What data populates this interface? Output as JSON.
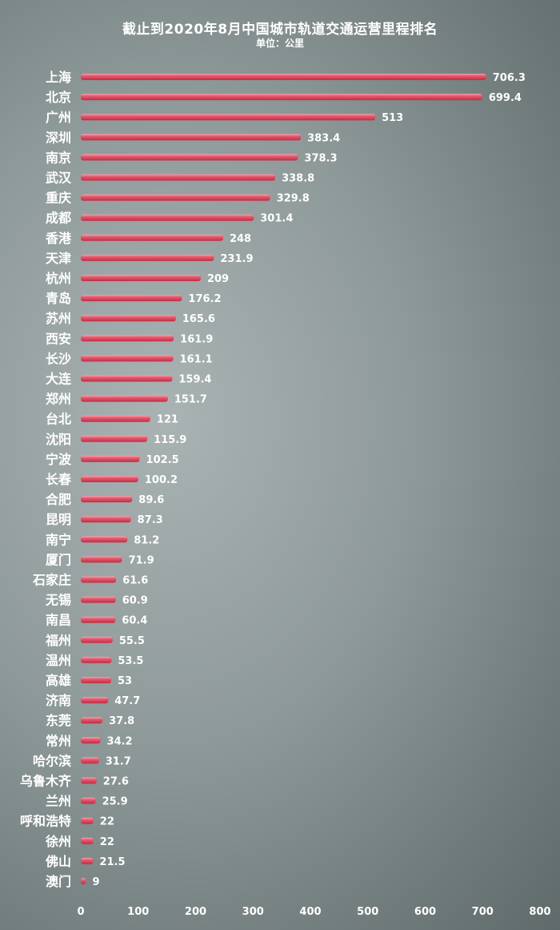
{
  "chart_data": {
    "type": "bar",
    "orientation": "horizontal",
    "title": "截止到2020年8月中国城市轨道交通运营里程排名",
    "subtitle": "单位：公里",
    "xlim": [
      0,
      800
    ],
    "xticks": [
      "0",
      "100",
      "200",
      "300",
      "400",
      "500",
      "600",
      "700",
      "800"
    ],
    "grid": false,
    "bar_color": "#e0475e",
    "categories": [
      "上海",
      "北京",
      "广州",
      "深圳",
      "南京",
      "武汉",
      "重庆",
      "成都",
      "香港",
      "天津",
      "杭州",
      "青岛",
      "苏州",
      "西安",
      "长沙",
      "大连",
      "郑州",
      "台北",
      "沈阳",
      "宁波",
      "长春",
      "合肥",
      "昆明",
      "南宁",
      "厦门",
      "石家庄",
      "无锡",
      "南昌",
      "福州",
      "温州",
      "高雄",
      "济南",
      "东莞",
      "常州",
      "哈尔滨",
      "乌鲁木齐",
      "兰州",
      "呼和浩特",
      "徐州",
      "佛山",
      "澳门"
    ],
    "values": [
      706.3,
      699.4,
      513,
      383.4,
      378.3,
      338.8,
      329.8,
      301.4,
      248,
      231.9,
      209,
      176.2,
      165.6,
      161.9,
      161.1,
      159.4,
      151.7,
      121,
      115.9,
      102.5,
      100.2,
      89.6,
      87.3,
      81.2,
      71.9,
      61.6,
      60.9,
      60.4,
      55.5,
      53.5,
      53,
      47.7,
      37.8,
      34.2,
      31.7,
      27.6,
      25.9,
      22,
      22,
      21.5,
      9
    ],
    "value_labels": [
      "706.3",
      "699.4",
      "513",
      "383.4",
      "378.3",
      "338.8",
      "329.8",
      "301.4",
      "248",
      "231.9",
      "209",
      "176.2",
      "165.6",
      "161.9",
      "161.1",
      "159.4",
      "151.7",
      "121",
      "115.9",
      "102.5",
      "100.2",
      "89.6",
      "87.3",
      "81.2",
      "71.9",
      "61.6",
      "60.9",
      "60.4",
      "55.5",
      "53.5",
      "53",
      "47.7",
      "37.8",
      "34.2",
      "31.7",
      "27.6",
      "25.9",
      "22",
      "22",
      "21.5",
      "9"
    ]
  }
}
